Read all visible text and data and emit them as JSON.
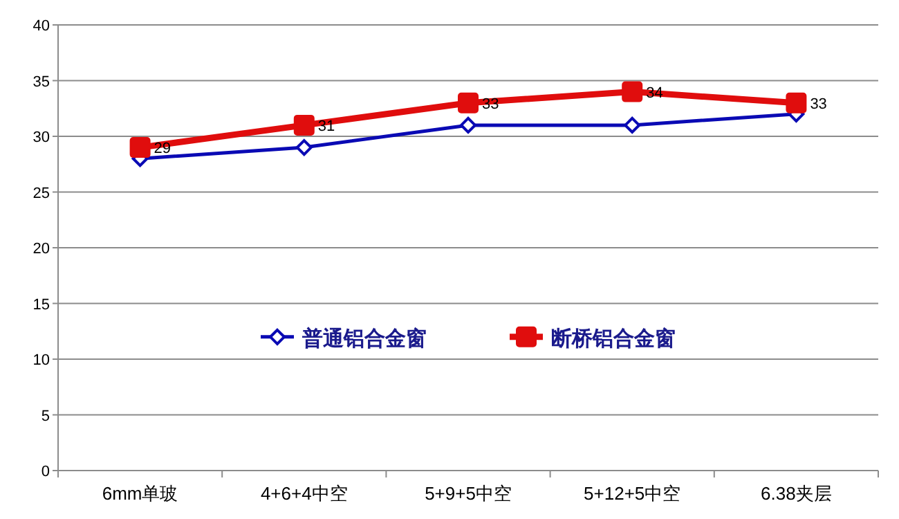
{
  "chart_data": {
    "type": "line",
    "categories": [
      "6mm单玻",
      "4+6+4中空",
      "5+9+5中空",
      "5+12+5中空",
      "6.38夹层"
    ],
    "series": [
      {
        "name": "普通铝合金窗",
        "color": "#0a0ab4",
        "marker": "diamond",
        "values": [
          28,
          29,
          31,
          31,
          32
        ]
      },
      {
        "name": "断桥铝合金窗",
        "color": "#e00d0d",
        "marker": "square",
        "values": [
          29,
          31,
          33,
          34,
          33
        ],
        "value_labels": [
          "29",
          "31",
          "33",
          "34",
          "33"
        ]
      }
    ],
    "ylim": [
      0,
      40
    ],
    "yticks": [
      0,
      5,
      10,
      15,
      20,
      25,
      30,
      35,
      40
    ],
    "grid": "y",
    "legend": "center",
    "line_style": "solid"
  }
}
